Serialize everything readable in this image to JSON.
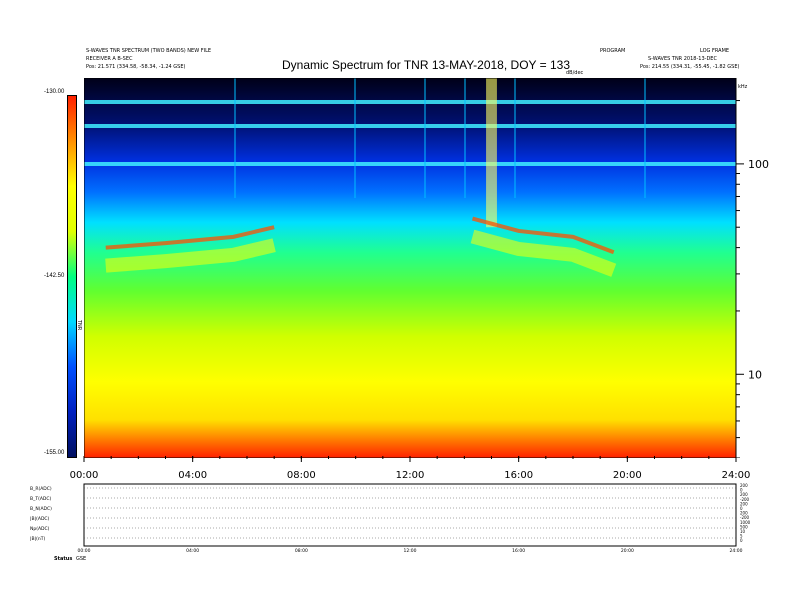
{
  "header": {
    "left_line1": "S-WAVES TNR SPECTRUM (TWO BANDS) NEW FILE",
    "left_line2": "RECEIVER A B-SEC",
    "left_line3": "Pos:  21.571 (334.58, -58.34, -1.24 GSE)",
    "right_line1": "PROGRAM",
    "right_line2": "S-WAVES TNR 2018-13-DEC",
    "right_line3": "Pos:  214.55 (334.31, -55.45, -1.82 GSE)",
    "corner_code": "LOG FRAME",
    "units_tag": "dB/dec",
    "right_axis_unit": "kHz"
  },
  "chart_data": {
    "type": "heatmap",
    "title": "Dynamic Spectrum for TNR 13-MAY-2018, DOY = 133",
    "colorbar": {
      "ticks": [
        "-130.00",
        "-142.50",
        "-155.00"
      ],
      "min": -155.0,
      "max": -130.0,
      "label": "TNR"
    },
    "x_axis": {
      "ticks": [
        "00:00",
        "04:00",
        "08:00",
        "12:00",
        "16:00",
        "20:00",
        "24:00"
      ],
      "range_hours": [
        0,
        24
      ]
    },
    "y_axis_right": {
      "scale": "log",
      "ticks": [
        "100",
        "10"
      ],
      "range_khz": [
        4,
        256
      ]
    },
    "features": {
      "bright_band_before_gap": [
        {
          "hour": 0.8,
          "khz": 40
        },
        {
          "hour": 3.0,
          "khz": 42
        },
        {
          "hour": 5.5,
          "khz": 45
        },
        {
          "hour": 7.0,
          "khz": 50
        }
      ],
      "bright_band_after_gap": [
        {
          "hour": 14.3,
          "khz": 55
        },
        {
          "hour": 16.0,
          "khz": 48
        },
        {
          "hour": 18.0,
          "khz": 45
        },
        {
          "hour": 19.5,
          "khz": 38
        }
      ],
      "colormap": [
        "#000010",
        "#001060",
        "#0020c0",
        "#0050ff",
        "#00d8ff",
        "#00ff80",
        "#60ff20",
        "#e0ff00",
        "#ffff00",
        "#ff9000",
        "#ff2000"
      ]
    }
  },
  "bottom_panel": {
    "rows": [
      "B_R(ADC)",
      "B_T(ADC)",
      "B_N(ADC)",
      "|B|(ADC)",
      "Np(ADC)",
      "|B|(nT)"
    ],
    "right_values": [
      "200",
      "0",
      "200",
      "-200",
      "200",
      "0",
      "200",
      "-200",
      "1000",
      "500",
      "10",
      "5",
      "0"
    ],
    "x_ticks": [
      "00:00",
      "04:00",
      "08:00",
      "12:00",
      "16:00",
      "20:00",
      "24:00"
    ],
    "footer_label": "Status",
    "footer_flag": "GSE"
  }
}
